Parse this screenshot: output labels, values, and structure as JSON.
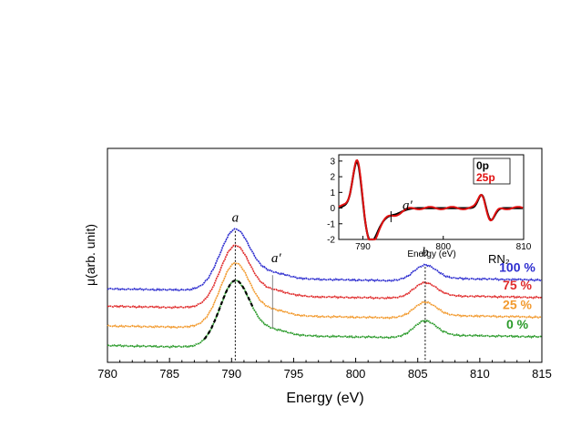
{
  "chart_data": [
    {
      "type": "line",
      "xlabel": "Energy (eV)",
      "ylabel": "μ(arb. unit)",
      "xlim": [
        780,
        815
      ],
      "x_ticks": [
        "780",
        "785",
        "790",
        "795",
        "800",
        "805",
        "810",
        "815"
      ],
      "legend_title": "RN₂",
      "peak_labels": {
        "a": {
          "text": "a",
          "x": 790.3
        },
        "a_prime": {
          "text": "a′",
          "x": 793.3
        },
        "b": {
          "text": "b",
          "x": 805.6
        }
      },
      "series": [
        {
          "name": "100 %",
          "color": "#2e2ecf",
          "offset": 0.52,
          "peak_a": 0.45,
          "peak_b": 0.12
        },
        {
          "name": "75 %",
          "color": "#e02b2b",
          "offset": 0.36,
          "peak_a": 0.46,
          "peak_b": 0.12
        },
        {
          "name": "25 %",
          "color": "#f29a2e",
          "offset": 0.18,
          "peak_a": 0.48,
          "peak_b": 0.12
        },
        {
          "name": "0 %",
          "color": "#2a9a2a",
          "offset": 0.0,
          "peak_a": 0.5,
          "peak_b": 0.13
        }
      ]
    },
    {
      "type": "line",
      "xlabel": "Energy (eV)",
      "xlim": [
        787,
        810
      ],
      "ylim": [
        -2,
        3.4
      ],
      "x_ticks": [
        "790",
        "800",
        "810"
      ],
      "y_ticks": [
        "3",
        "2",
        "1",
        "0",
        "-1",
        "-2"
      ],
      "annotation": "a′",
      "series": [
        {
          "name": "0p",
          "color": "#000000"
        },
        {
          "name": "25p",
          "color": "#e01010"
        }
      ]
    }
  ]
}
